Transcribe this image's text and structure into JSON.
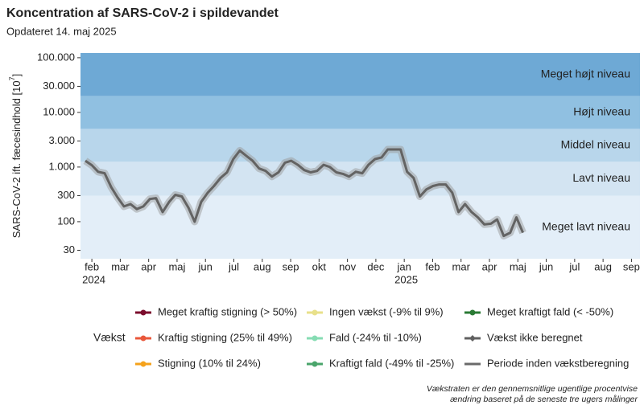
{
  "chart_data": {
    "type": "line",
    "title": "Koncentration af SARS-CoV-2 i spildevandet",
    "subtitle": "Opdateret 14. maj 2025",
    "y_label": "SARS-CoV-2 ift. fæcesindhold [10",
    "y_label_exponent": "7",
    "y_label_end": "]",
    "log_y": true,
    "ylim": [
      21,
      122000
    ],
    "yticks": [
      30,
      100,
      300,
      {
        "value": 1000,
        "label": "1.000"
      },
      {
        "value": 3000,
        "label": "3.000"
      },
      {
        "value": 10000,
        "label": "10.000"
      },
      {
        "value": 30000,
        "label": "30.000"
      },
      {
        "value": 100000,
        "label": "100.000"
      }
    ],
    "xlim": [
      1.6,
      21.3
    ],
    "xticks": [
      {
        "value": 2,
        "label": "feb"
      },
      {
        "value": 3,
        "label": "mar"
      },
      {
        "value": 4,
        "label": "apr"
      },
      {
        "value": 5,
        "label": "maj"
      },
      {
        "value": 6,
        "label": "jun"
      },
      {
        "value": 7,
        "label": "jul"
      },
      {
        "value": 8,
        "label": "aug"
      },
      {
        "value": 9,
        "label": "sep"
      },
      {
        "value": 10,
        "label": "okt"
      },
      {
        "value": 11,
        "label": "nov"
      },
      {
        "value": 12,
        "label": "dec"
      },
      {
        "value": 13,
        "label": "jan"
      },
      {
        "value": 14,
        "label": "feb"
      },
      {
        "value": 15,
        "label": "mar"
      },
      {
        "value": 16,
        "label": "apr"
      },
      {
        "value": 17,
        "label": "maj"
      },
      {
        "value": 18,
        "label": "jun"
      },
      {
        "value": 19,
        "label": "jul"
      },
      {
        "value": 20,
        "label": "aug"
      },
      {
        "value": 21,
        "label": "sep"
      }
    ],
    "x_year_labels": [
      {
        "value": 2,
        "label": "2024"
      },
      {
        "value": 13,
        "label": "2025"
      }
    ],
    "band_edges": [
      300,
      1250,
      5000,
      20000
    ],
    "band_labels": [
      "Meget lavt niveau",
      "Lavt niveau",
      "Middel niveau",
      "Højt niveau",
      "Meget højt niveau"
    ],
    "band_colors": [
      "#e3eef8",
      "#d3e4f2",
      "#b8d6eb",
      "#90c0e1",
      "#6ea9d5"
    ],
    "color": "#636363",
    "x": [
      1.77,
      2.0,
      2.22,
      2.45,
      2.68,
      2.9,
      3.13,
      3.36,
      3.58,
      3.81,
      4.04,
      4.26,
      4.49,
      4.72,
      4.94,
      5.17,
      5.4,
      5.62,
      5.85,
      6.08,
      6.3,
      6.53,
      6.76,
      6.98,
      7.21,
      7.44,
      7.66,
      7.89,
      8.12,
      8.34,
      8.57,
      8.8,
      9.02,
      9.25,
      9.48,
      9.7,
      9.93,
      10.16,
      10.38,
      10.61,
      10.84,
      11.06,
      11.29,
      11.52,
      11.74,
      11.97,
      12.2,
      12.42,
      12.65,
      12.87,
      13.1,
      13.33,
      13.55,
      13.78,
      14.01,
      14.23,
      14.46,
      14.69,
      14.91,
      15.14,
      15.37,
      15.59,
      15.82,
      16.05,
      16.27,
      16.5,
      16.73,
      16.95,
      17.18
    ],
    "values": [
      1300,
      1080,
      820,
      770,
      430,
      280,
      190,
      210,
      170,
      190,
      260,
      270,
      150,
      230,
      310,
      290,
      180,
      100,
      230,
      340,
      450,
      630,
      800,
      1400,
      2000,
      1600,
      1300,
      940,
      850,
      670,
      800,
      1200,
      1300,
      1100,
      880,
      800,
      850,
      1100,
      1000,
      800,
      750,
      670,
      820,
      770,
      1100,
      1400,
      1500,
      2100,
      2100,
      2100,
      820,
      630,
      290,
      390,
      450,
      480,
      480,
      340,
      150,
      210,
      150,
      120,
      89,
      92,
      110,
      55,
      63,
      120,
      63
    ],
    "legend": {
      "title": "Vækst",
      "items": [
        {
          "name": "Meget kraftig stigning (> 50%)",
          "color": "#7b0c2c",
          "marker": "dot"
        },
        {
          "name": "Kraftig stigning (25% til 49%)",
          "color": "#e9573a",
          "marker": "dot"
        },
        {
          "name": "Stigning (10% til 24%)",
          "color": "#f5a21b",
          "marker": "dot"
        },
        {
          "name": "Ingen vækst (-9% til 9%)",
          "color": "#e8e08a",
          "marker": "dot"
        },
        {
          "name": "Fald (-24% til -10%)",
          "color": "#86dcb3",
          "marker": "dot"
        },
        {
          "name": "Kraftigt fald (-49% til -25%)",
          "color": "#4aa56b",
          "marker": "dot"
        },
        {
          "name": "Meget kraftigt fald (< -50%)",
          "color": "#2a7a34",
          "marker": "dot"
        },
        {
          "name": "Vækst ikke beregnet",
          "color": "#606060",
          "marker": "diamond"
        },
        {
          "name": "Periode inden vækstberegning",
          "color": "#6a6a6a",
          "marker": "none"
        }
      ]
    },
    "footnote": [
      "Vækstraten er den gennemsnitlige ugentlige procentvise",
      "ændring baseret på de seneste tre ugers målinger"
    ]
  }
}
